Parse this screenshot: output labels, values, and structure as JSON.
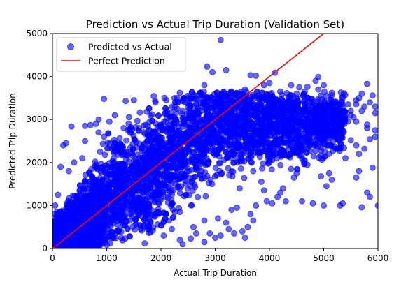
{
  "colors": {
    "points": "#0000ff",
    "perfect_line": "#ff0000",
    "axes": "#000000",
    "background": "#ffffff"
  },
  "chart_data": {
    "type": "scatter",
    "title": "Prediction vs Actual Trip Duration (Validation Set)",
    "xlabel": "Actual Trip Duration",
    "ylabel": "Predicted Trip Duration",
    "xlim": [
      0,
      6000
    ],
    "ylim": [
      0,
      5000
    ],
    "xticks": [
      0,
      1000,
      2000,
      3000,
      4000,
      5000,
      6000
    ],
    "yticks": [
      0,
      1000,
      2000,
      3000,
      4000,
      5000
    ],
    "grid": false,
    "legend_position": "top-left",
    "series": [
      {
        "name": "Predicted vs Actual",
        "marker": "circle",
        "alpha": 0.6,
        "points": [
          [
            3100,
            4850
          ],
          [
            2850,
            4230
          ],
          [
            3200,
            4150
          ],
          [
            2950,
            4100
          ],
          [
            3650,
            4030
          ],
          [
            3750,
            4020
          ],
          [
            4100,
            4090
          ],
          [
            4900,
            3990
          ],
          [
            5000,
            3800
          ],
          [
            5150,
            3620
          ],
          [
            5800,
            3830
          ],
          [
            5900,
            3560
          ],
          [
            5650,
            3500
          ],
          [
            4500,
            3600
          ],
          [
            4350,
            3520
          ],
          [
            5450,
            3350
          ],
          [
            5500,
            3200
          ],
          [
            5450,
            2960
          ],
          [
            5700,
            3200
          ],
          [
            5550,
            3050
          ],
          [
            5950,
            3300
          ],
          [
            5800,
            2880
          ],
          [
            5200,
            2750
          ],
          [
            5300,
            2350
          ],
          [
            5400,
            2100
          ],
          [
            5600,
            2400
          ],
          [
            5650,
            2200
          ],
          [
            5750,
            2320
          ],
          [
            5800,
            2800
          ],
          [
            5950,
            2750
          ],
          [
            5950,
            2600
          ],
          [
            5850,
            2540
          ],
          [
            5500,
            2520
          ],
          [
            5600,
            1650
          ],
          [
            5650,
            1800
          ],
          [
            5900,
            1880
          ],
          [
            5800,
            1300
          ],
          [
            5850,
            1200
          ],
          [
            6000,
            1000
          ],
          [
            5700,
            960
          ],
          [
            5350,
            1050
          ],
          [
            5300,
            1000
          ],
          [
            5000,
            1000
          ],
          [
            4800,
            1050
          ],
          [
            4600,
            1100
          ],
          [
            4950,
            1680
          ],
          [
            5050,
            1450
          ],
          [
            5150,
            1600
          ],
          [
            5100,
            1750
          ],
          [
            4700,
            1950
          ],
          [
            4650,
            2050
          ],
          [
            4500,
            1750
          ],
          [
            4450,
            1650
          ],
          [
            4400,
            1850
          ],
          [
            4250,
            1400
          ],
          [
            4200,
            1300
          ],
          [
            4300,
            1100
          ],
          [
            4150,
            1200
          ],
          [
            4050,
            1050
          ],
          [
            3950,
            1100
          ],
          [
            3900,
            1350
          ],
          [
            3850,
            1550
          ],
          [
            3750,
            1000
          ],
          [
            3650,
            800
          ],
          [
            3700,
            650
          ],
          [
            3600,
            500
          ],
          [
            3550,
            250
          ],
          [
            3500,
            400
          ],
          [
            3400,
            950
          ],
          [
            3300,
            900
          ],
          [
            3250,
            450
          ],
          [
            3100,
            300
          ],
          [
            3000,
            250
          ],
          [
            2900,
            350
          ],
          [
            2800,
            150
          ],
          [
            2650,
            350
          ],
          [
            2550,
            230
          ],
          [
            2400,
            100
          ],
          [
            2350,
            200
          ],
          [
            2050,
            300
          ],
          [
            1850,
            420
          ],
          [
            1700,
            120
          ],
          [
            1350,
            1380
          ],
          [
            1200,
            1220
          ],
          [
            3400,
            2000
          ],
          [
            3700,
            1800
          ],
          [
            4350,
            2550
          ],
          [
            4600,
            2100
          ],
          [
            4750,
            2700
          ],
          [
            4050,
            2050
          ],
          [
            3450,
            1400
          ],
          [
            3850,
            2600
          ],
          [
            4850,
            2400
          ],
          [
            5100,
            2200
          ],
          [
            5700,
            3600
          ],
          [
            5750,
            3300
          ],
          [
            5850,
            3400
          ],
          [
            5600,
            3450
          ],
          [
            5500,
            3100
          ],
          [
            5350,
            3500
          ],
          [
            5050,
            3550
          ],
          [
            4650,
            3300
          ],
          [
            4900,
            3700
          ],
          [
            4850,
            3900
          ],
          [
            4700,
            3760
          ],
          [
            4550,
            3750
          ],
          [
            4400,
            3800
          ],
          [
            4650,
            3650
          ],
          [
            4200,
            3650
          ],
          [
            4000,
            3850
          ],
          [
            3900,
            3800
          ],
          [
            3550,
            3700
          ],
          [
            3300,
            3650
          ],
          [
            2800,
            3800
          ],
          [
            2650,
            3550
          ],
          [
            2250,
            3500
          ],
          [
            2100,
            3450
          ],
          [
            1900,
            3400
          ],
          [
            1500,
            3450
          ],
          [
            1350,
            3430
          ],
          [
            950,
            3480
          ],
          [
            850,
            3000
          ],
          [
            700,
            2870
          ],
          [
            600,
            2850
          ],
          [
            350,
            2840
          ],
          [
            250,
            2450
          ],
          [
            200,
            2400
          ],
          [
            950,
            2600
          ],
          [
            800,
            2900
          ],
          [
            400,
            2000
          ],
          [
            150,
            1900
          ],
          [
            100,
            1250
          ],
          [
            50,
            1000
          ],
          [
            200,
            800
          ],
          [
            80,
            850
          ],
          [
            2450,
            3400
          ],
          [
            2300,
            3250
          ],
          [
            5300,
            2700
          ],
          [
            5600,
            2950
          ],
          [
            4950,
            2950
          ],
          [
            5950,
            3150
          ],
          [
            5600,
            3350
          ],
          [
            4300,
            3350
          ],
          [
            3850,
            3500
          ],
          [
            1150,
            3100
          ],
          [
            1050,
            2950
          ],
          [
            850,
            2700
          ],
          [
            600,
            2500
          ],
          [
            550,
            2100
          ],
          [
            300,
            1800
          ],
          [
            2350,
            850
          ],
          [
            2150,
            650
          ],
          [
            1950,
            850
          ],
          [
            2800,
            650
          ],
          [
            3200,
            600
          ],
          [
            3350,
            350
          ],
          [
            2600,
            500
          ],
          [
            3050,
            700
          ],
          [
            2200,
            450
          ],
          [
            1750,
            600
          ]
        ],
        "cloud": {
          "x_min": 0,
          "x_max": 6000,
          "core_center_slope": 0.88,
          "core_center_intercept": 250,
          "core_upper_slope": 1.6,
          "core_upper_intercept": 900,
          "plateau_center": 2900,
          "plateau_half_width": 500,
          "lower_edge_slope": 0.45,
          "lower_edge_intercept": -350
        }
      },
      {
        "name": "Perfect Prediction",
        "type": "line",
        "x": [
          0,
          6000
        ],
        "y": [
          0,
          6000
        ]
      }
    ]
  }
}
